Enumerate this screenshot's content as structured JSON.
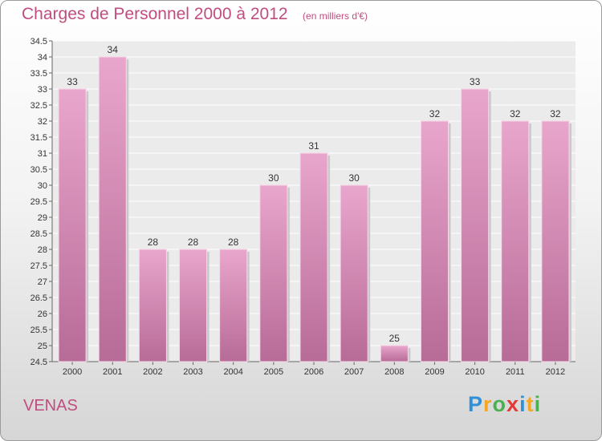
{
  "chart_data": {
    "type": "bar",
    "title": "Charges de Personnel 2000 à 2012",
    "subtitle": "(en milliers d'€)",
    "categories": [
      "2000",
      "2001",
      "2002",
      "2003",
      "2004",
      "2005",
      "2006",
      "2007",
      "2008",
      "2009",
      "2010",
      "2011",
      "2012"
    ],
    "values": [
      33,
      34,
      28,
      28,
      28,
      30,
      31,
      30,
      25,
      32,
      33,
      32,
      32
    ],
    "data_labels": [
      "33",
      "34",
      "28",
      "28",
      "28",
      "30",
      "31",
      "30",
      "25",
      "32",
      "33",
      "32",
      "32"
    ],
    "ylim": [
      24.5,
      34.5
    ],
    "yticks": [
      "24.5",
      "25",
      "25.5",
      "26",
      "26.5",
      "27",
      "27.5",
      "28",
      "28.5",
      "29",
      "29.5",
      "30",
      "30.5",
      "31",
      "31.5",
      "32",
      "32.5",
      "33",
      "33.5",
      "34",
      "34.5"
    ],
    "grid": true,
    "bar_color": "#d67fb0"
  },
  "place_name": "VENAS",
  "logo": {
    "letters": [
      "P",
      "r",
      "o",
      "x",
      "i",
      "t",
      "i"
    ],
    "colors": [
      "#2f8fd8",
      "#f5a623",
      "#4caf50",
      "#e53935",
      "#2f8fd8",
      "#f5a623",
      "#4caf50"
    ]
  }
}
